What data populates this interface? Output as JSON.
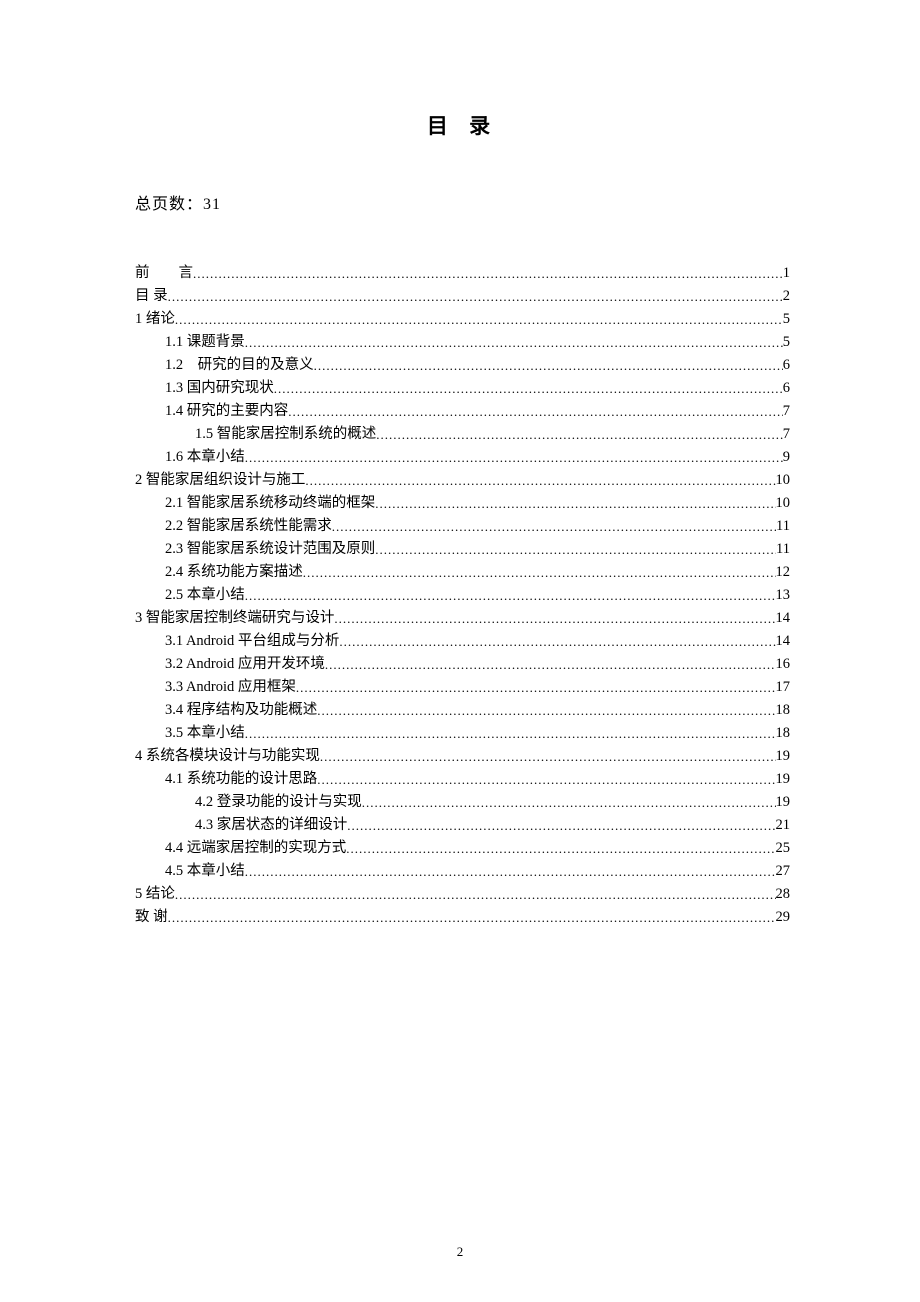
{
  "title": "目 录",
  "totalPagesLabel": "总页数：31",
  "pageNumber": "2",
  "toc": [
    {
      "label": "前　　言",
      "page": "1",
      "indent": 0
    },
    {
      "label": "目 录",
      "page": "2",
      "indent": 0
    },
    {
      "label": "1 绪论",
      "page": "5",
      "indent": 0
    },
    {
      "label": "1.1 课题背景",
      "page": "5",
      "indent": 1
    },
    {
      "label": "1.2　研究的目的及意义",
      "page": "6",
      "indent": 1
    },
    {
      "label": "1.3 国内研究现状",
      "page": "6",
      "indent": 1
    },
    {
      "label": "1.4 研究的主要内容",
      "page": "7",
      "indent": 1
    },
    {
      "label": "1.5 智能家居控制系统的概述",
      "page": "7",
      "indent": 2
    },
    {
      "label": "1.6 本章小结",
      "page": "9",
      "indent": 1
    },
    {
      "label": "2 智能家居组织设计与施工",
      "page": "10",
      "indent": 0
    },
    {
      "label": "2.1 智能家居系统移动终端的框架",
      "page": "10",
      "indent": 1
    },
    {
      "label": "2.2 智能家居系统性能需求",
      "page": "11",
      "indent": 1
    },
    {
      "label": "2.3 智能家居系统设计范围及原则",
      "page": "11",
      "indent": 1
    },
    {
      "label": "2.4 系统功能方案描述",
      "page": "12",
      "indent": 1
    },
    {
      "label": "2.5 本章小结",
      "page": "13",
      "indent": 1
    },
    {
      "label": "3 智能家居控制终端研究与设计",
      "page": "14",
      "indent": 0
    },
    {
      "label": "3.1 Android 平台组成与分析",
      "page": "14",
      "indent": 1
    },
    {
      "label": "3.2 Android 应用开发环境",
      "page": "16",
      "indent": 1
    },
    {
      "label": "3.3 Android 应用框架",
      "page": "17",
      "indent": 1
    },
    {
      "label": "3.4 程序结构及功能概述",
      "page": "18",
      "indent": 1
    },
    {
      "label": "3.5 本章小结",
      "page": "18",
      "indent": 1
    },
    {
      "label": "4 系统各模块设计与功能实现",
      "page": "19",
      "indent": 0
    },
    {
      "label": "4.1 系统功能的设计思路",
      "page": "19",
      "indent": 1
    },
    {
      "label": "4.2 登录功能的设计与实现",
      "page": "19",
      "indent": 2
    },
    {
      "label": "4.3 家居状态的详细设计",
      "page": "21",
      "indent": 2
    },
    {
      "label": "4.4 远端家居控制的实现方式",
      "page": "25",
      "indent": 1
    },
    {
      "label": "4.5 本章小结",
      "page": "27",
      "indent": 1
    },
    {
      "label": "5 结论",
      "page": "28",
      "indent": 0
    },
    {
      "label": "致 谢",
      "page": "29",
      "indent": 0
    }
  ]
}
